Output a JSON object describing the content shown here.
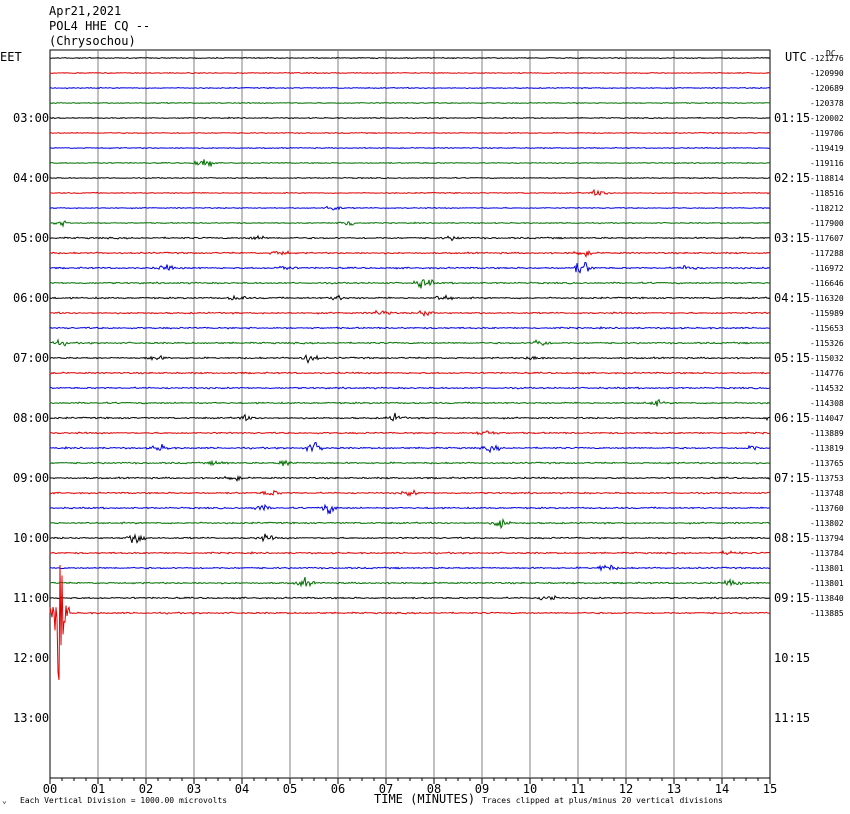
{
  "header": {
    "date": "Apr21,2021",
    "station": "POL4 HHE CQ --",
    "location": "(Chrysochou)"
  },
  "left_zone": "EET",
  "right_zone": "UTC",
  "dc_label": "DC",
  "colors": {
    "black": "#000000",
    "red": "#e00000",
    "blue": "#0000e0",
    "green": "#007000",
    "grid": "#808080"
  },
  "chart_data": {
    "type": "line",
    "title": "Apr21,2021 POL4 HHE CQ -- (Chrysochou)",
    "xlabel": "TIME (MINUTES)",
    "x_ticks": [
      "00",
      "01",
      "02",
      "03",
      "04",
      "05",
      "06",
      "07",
      "08",
      "09",
      "10",
      "11",
      "12",
      "13",
      "14",
      "15"
    ],
    "xlim": [
      0,
      15
    ],
    "left_hour_labels": [
      "03:00",
      "04:00",
      "05:00",
      "06:00",
      "07:00",
      "08:00",
      "09:00",
      "10:00",
      "11:00",
      "12:00",
      "13:00"
    ],
    "right_hour_labels": [
      "01:15",
      "02:15",
      "03:15",
      "04:15",
      "05:15",
      "06:15",
      "07:15",
      "08:15",
      "09:15",
      "10:15",
      "11:15"
    ],
    "trace_colors": [
      "black",
      "red",
      "blue",
      "green"
    ],
    "dc_offsets": [
      "-121276",
      "-120990",
      "-120689",
      "-120378",
      "-120002",
      "-119706",
      "-119419",
      "-119116",
      "-118814",
      "-118516",
      "-118212",
      "-117900",
      "-117607",
      "-117288",
      "-116972",
      "-116646",
      "-116320",
      "-115989",
      "-115653",
      "-115326",
      "-115032",
      "-114776",
      "-114532",
      "-114308",
      "-114047",
      "-113889",
      "-113819",
      "-113765",
      "-113753",
      "-113748",
      "-113760",
      "-113802",
      "-113794",
      "-113784",
      "-113801",
      "-113801",
      "-113840",
      "-113885"
    ],
    "footer_left": "Each Vertical Division = 1000.00 microvolts",
    "footer_right": "Traces clipped at plus/minus 20 vertical divisions"
  }
}
